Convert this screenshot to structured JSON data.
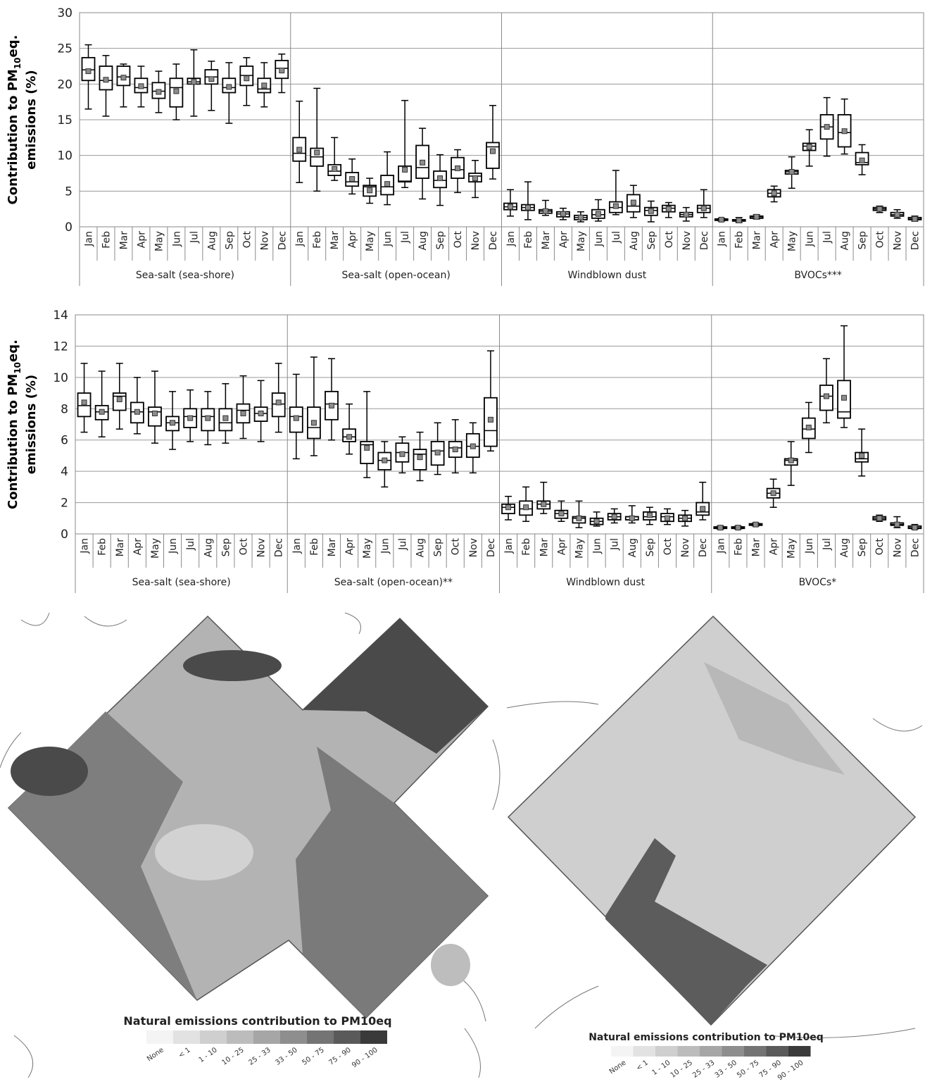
{
  "chart_data": [
    {
      "type": "box",
      "ylabel": {
        "text": "Contribution to PM",
        "subscript": "10",
        "after": "eq.",
        "line2": "emissions  (%)"
      },
      "categories": [
        "Jan",
        "Feb",
        "Mar",
        "Apr",
        "May",
        "Jun",
        "Jul",
        "Aug",
        "Sep",
        "Oct",
        "Nov",
        "Dec"
      ],
      "ylim": [
        0,
        30
      ],
      "yticks": [
        0,
        5,
        10,
        15,
        20,
        25,
        30
      ],
      "grid": true,
      "series": [
        {
          "name": "Sea-salt (sea-shore)",
          "min": [
            16.5,
            15.5,
            16.8,
            16.8,
            16,
            15,
            15.5,
            16.3,
            14.5,
            17,
            16.8,
            18.8
          ],
          "q1": [
            20.5,
            19.2,
            19.8,
            18.8,
            18,
            16.8,
            20,
            20,
            18.8,
            19.8,
            18.8,
            20.8
          ],
          "median": [
            22,
            20.5,
            21,
            19.5,
            19,
            19.5,
            20.3,
            21,
            19.5,
            21.2,
            19.3,
            22.2
          ],
          "q3": [
            23.7,
            22.5,
            22.5,
            20.8,
            20.2,
            20.8,
            20.8,
            22,
            20.8,
            22.5,
            20.8,
            23.3
          ],
          "max": [
            25.5,
            24,
            22.8,
            22.5,
            21.8,
            22.8,
            24.8,
            23.2,
            23,
            23.7,
            23,
            24.2
          ],
          "mean": [
            21.8,
            20.6,
            20.9,
            19.7,
            18.9,
            19,
            20.3,
            20.7,
            19.6,
            20.8,
            19.8,
            21.9
          ]
        },
        {
          "name": "Sea-salt (open-ocean)",
          "min": [
            6.2,
            5,
            6.5,
            4.6,
            3.3,
            3.1,
            5.5,
            3.9,
            3,
            4.8,
            4.1,
            6.7
          ],
          "q1": [
            9.2,
            8.5,
            7.2,
            5.7,
            4.3,
            4.5,
            6.3,
            6.8,
            5.5,
            6.8,
            6.3,
            8.2
          ],
          "median": [
            10.3,
            9.8,
            7.8,
            6.3,
            5.6,
            5.6,
            6.4,
            8.3,
            6.5,
            8,
            7.1,
            11.2
          ],
          "q3": [
            12.5,
            11,
            8.7,
            7.6,
            5.8,
            7.2,
            8.5,
            11.4,
            7.8,
            9.7,
            7.5,
            11.8
          ],
          "max": [
            17.6,
            19.4,
            12.5,
            9.5,
            6.8,
            10.5,
            17.7,
            13.8,
            10.1,
            10.8,
            9.3,
            17
          ],
          "mean": [
            10.8,
            10.4,
            8.1,
            6.7,
            5.1,
            6,
            8,
            9,
            6.8,
            8.2,
            6.8,
            10.6
          ]
        },
        {
          "name": "Windblown dust",
          "min": [
            1.5,
            1,
            1.6,
            1,
            0.7,
            0.8,
            1.7,
            1.3,
            0.7,
            1.3,
            0.8,
            1.3
          ],
          "q1": [
            2.4,
            2.3,
            1.9,
            1.4,
            1,
            1.2,
            2,
            2.1,
            1.6,
            2.1,
            1.4,
            2
          ],
          "median": [
            2.8,
            2.7,
            2.2,
            1.8,
            1.3,
            1.7,
            2.7,
            2.9,
            2.3,
            2.6,
            1.7,
            2.6
          ],
          "q3": [
            3.3,
            3.1,
            2.4,
            2.1,
            1.6,
            2.4,
            3.5,
            4.5,
            2.7,
            3,
            2,
            3
          ],
          "max": [
            5.2,
            6.3,
            3.7,
            2.6,
            2.1,
            3.8,
            7.9,
            5.8,
            3.6,
            3.4,
            2.7,
            5.2
          ],
          "mean": [
            2.8,
            2.7,
            2.2,
            1.8,
            1.3,
            1.8,
            2.9,
            3.4,
            2.2,
            2.5,
            1.7,
            2.6
          ]
        },
        {
          "name": "BVOCs***",
          "min": [
            0.8,
            0.6,
            1.1,
            3.5,
            5.4,
            8.5,
            9.9,
            10.2,
            7.3,
            2,
            1.2,
            0.8
          ],
          "q1": [
            0.9,
            0.8,
            1.2,
            4.2,
            7.4,
            10.7,
            12.3,
            11.2,
            8.7,
            2.3,
            1.5,
            1
          ],
          "median": [
            1,
            0.9,
            1.4,
            4.7,
            7.7,
            11.3,
            14,
            13.2,
            9,
            2.5,
            1.7,
            1.1
          ],
          "q3": [
            1.1,
            1,
            1.5,
            5.2,
            7.9,
            11.7,
            15.7,
            15.7,
            10.4,
            2.7,
            2,
            1.3
          ],
          "max": [
            1.2,
            1.3,
            1.7,
            5.7,
            9.8,
            13.6,
            18.1,
            17.9,
            11.5,
            2.9,
            2.4,
            1.5
          ],
          "mean": [
            1,
            0.9,
            1.4,
            4.7,
            7.7,
            11.2,
            14,
            13.4,
            9.3,
            2.5,
            1.7,
            1.1
          ]
        }
      ]
    },
    {
      "type": "box",
      "ylabel": {
        "text": "Contribution to PM",
        "subscript": "10",
        "after": "eq.",
        "line2": "emissions  (%)"
      },
      "categories": [
        "Jan",
        "Feb",
        "Mar",
        "Apr",
        "May",
        "Jun",
        "Jul",
        "Aug",
        "Sep",
        "Oct",
        "Nov",
        "Dec"
      ],
      "ylim": [
        0,
        14
      ],
      "yticks": [
        0,
        2,
        4,
        6,
        8,
        10,
        12,
        14
      ],
      "grid": true,
      "series": [
        {
          "name": "Sea-salt (sea-shore)",
          "min": [
            6.5,
            6.2,
            6.7,
            6.4,
            5.8,
            5.4,
            5.9,
            5.7,
            5.8,
            6.1,
            5.9,
            6.5
          ],
          "q1": [
            7.5,
            7.3,
            7.9,
            7.1,
            6.9,
            6.6,
            6.8,
            6.6,
            6.6,
            7.1,
            7.2,
            7.5
          ],
          "median": [
            8.2,
            7.8,
            8.8,
            7.8,
            7.8,
            7.1,
            7.5,
            7.5,
            7.1,
            7.9,
            7.7,
            8.3
          ],
          "q3": [
            9,
            8.2,
            9,
            8.4,
            8.1,
            7.5,
            8,
            8,
            8,
            8.3,
            8.1,
            9
          ],
          "max": [
            10.9,
            10.4,
            10.9,
            10,
            10.4,
            9.1,
            9.2,
            9.1,
            9.6,
            10.1,
            9.8,
            10.9
          ],
          "mean": [
            8.4,
            7.8,
            8.6,
            7.8,
            7.7,
            7.1,
            7.4,
            7.4,
            7.4,
            7.7,
            7.7,
            8.4
          ]
        },
        {
          "name": "Sea-salt (open-ocean)**",
          "min": [
            4.8,
            5,
            6,
            5.1,
            3.6,
            3,
            3.9,
            3.4,
            3.8,
            3.9,
            3.9,
            5.3
          ],
          "q1": [
            6.5,
            6.1,
            7.3,
            5.9,
            4.5,
            4.1,
            4.6,
            4.1,
            4.4,
            4.9,
            4.9,
            5.6
          ],
          "median": [
            7.5,
            6.8,
            8.3,
            6.2,
            5.7,
            4.7,
            5.2,
            5.1,
            5.3,
            5.5,
            5.6,
            6.6
          ],
          "q3": [
            8.1,
            8.1,
            9.1,
            6.7,
            5.9,
            5.2,
            5.8,
            5.4,
            5.9,
            5.9,
            6.4,
            8.7
          ],
          "max": [
            10.2,
            11.3,
            11.2,
            8.3,
            9.1,
            5.9,
            6.2,
            6.5,
            7.1,
            7.3,
            7.1,
            11.7
          ],
          "mean": [
            7.4,
            7.1,
            8.2,
            6.2,
            5.5,
            4.7,
            5.1,
            4.9,
            5.2,
            5.4,
            5.6,
            7.3
          ]
        },
        {
          "name": "Windblown dust",
          "min": [
            0.9,
            0.8,
            1.3,
            0.8,
            0.4,
            0.5,
            0.7,
            0.7,
            0.6,
            0.6,
            0.5,
            0.9
          ],
          "q1": [
            1.3,
            1.2,
            1.6,
            1,
            0.7,
            0.6,
            0.9,
            0.9,
            0.9,
            0.8,
            0.8,
            1.2
          ],
          "median": [
            1.7,
            1.6,
            1.9,
            1.3,
            1,
            0.8,
            1.1,
            1.1,
            1.1,
            1.1,
            1,
            1.4
          ],
          "q3": [
            1.9,
            2.1,
            2.1,
            1.5,
            1.1,
            1,
            1.3,
            1.1,
            1.4,
            1.3,
            1.2,
            2
          ],
          "max": [
            2.4,
            3,
            3.3,
            2.1,
            2.1,
            1.4,
            1.6,
            1.8,
            1.7,
            1.6,
            1.5,
            3.3
          ],
          "mean": [
            1.7,
            1.7,
            1.9,
            1.3,
            1,
            0.8,
            1.1,
            1,
            1.2,
            1,
            1,
            1.6
          ]
        },
        {
          "name": "BVOCs*",
          "min": [
            0.3,
            0.3,
            0.5,
            1.7,
            3.1,
            5.2,
            7.1,
            6.8,
            3.7,
            0.8,
            0.4,
            0.3
          ],
          "q1": [
            0.35,
            0.35,
            0.55,
            2.3,
            4.4,
            6.1,
            7.9,
            7.4,
            4.6,
            0.9,
            0.55,
            0.35
          ],
          "median": [
            0.4,
            0.4,
            0.6,
            2.6,
            4.7,
            6.7,
            8.8,
            7.8,
            4.8,
            1,
            0.6,
            0.4
          ],
          "q3": [
            0.45,
            0.45,
            0.65,
            2.9,
            4.8,
            7.4,
            9.5,
            9.8,
            5.2,
            1.1,
            0.7,
            0.5
          ],
          "max": [
            0.5,
            0.5,
            0.7,
            3.5,
            5.9,
            8.4,
            11.2,
            13.3,
            6.7,
            1.2,
            1.1,
            0.6
          ],
          "mean": [
            0.4,
            0.4,
            0.6,
            2.6,
            4.7,
            6.8,
            8.8,
            8.7,
            5,
            1,
            0.6,
            0.4
          ]
        }
      ]
    }
  ],
  "maps": [
    {
      "legend_title": "Natural emissions contribution to PM10eq",
      "legend_labels": [
        "None",
        "< 1",
        "1 - 10",
        "10 - 25",
        "25 - 33",
        "33 - 50",
        "50 - 75",
        "75 - 90",
        "90 - 100"
      ],
      "legend_colors": [
        "#f4f4f4",
        "#e2e2e2",
        "#cfcfcf",
        "#bcbcbc",
        "#a6a6a6",
        "#8e8e8e",
        "#747474",
        "#5a5a5a",
        "#3a3a3a"
      ]
    },
    {
      "legend_title": "Natural emissions contribution to PM10eq",
      "legend_labels": [
        "None",
        "< 1",
        "1 - 10",
        "10 - 25",
        "25 - 33",
        "33 - 50",
        "50 - 75",
        "75 - 90",
        "90 - 100"
      ],
      "legend_colors": [
        "#f4f4f4",
        "#e2e2e2",
        "#cfcfcf",
        "#bcbcbc",
        "#a6a6a6",
        "#8e8e8e",
        "#747474",
        "#5a5a5a",
        "#3a3a3a"
      ]
    }
  ]
}
